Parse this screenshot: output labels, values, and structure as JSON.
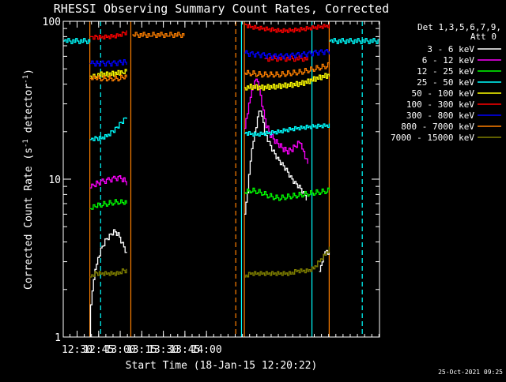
{
  "chart_data": {
    "type": "line",
    "title": "RHESSI Observing Summary Count Rates, Corrected",
    "xlabel": "Start Time (18-Jan-15 12:20:22)",
    "ylabel": "Corrected Count Rate (s⁻¹ detector⁻¹)",
    "ylabel_parts": [
      "Corrected Count Rate (s",
      "-1",
      " detector",
      "-1",
      ")"
    ],
    "yscale": "log",
    "ylim": [
      1,
      100
    ],
    "xlim_minutes_from_start": [
      0,
      220
    ],
    "x_ticks": [
      "12:30",
      "12:45",
      "13:00",
      "13:15",
      "13:30",
      "13:45",
      "14:00"
    ],
    "y_ticks": [
      "1",
      "10",
      "100"
    ],
    "legend_header": [
      "Det 1,3,5,6,7,9,",
      "Att 0"
    ],
    "legend_position": "right",
    "timestamp": "25-Oct-2021 09:25",
    "series": [
      {
        "name": "3 - 6 keV",
        "color": "#ffffff",
        "segments": [
          [
            [
              18.5,
              1.0
            ],
            [
              19,
              1.6
            ],
            [
              21,
              2.4
            ],
            [
              23,
              3.0
            ],
            [
              26,
              3.6
            ],
            [
              29,
              4.1
            ],
            [
              32,
              4.4
            ],
            [
              35,
              4.7
            ],
            [
              38,
              4.5
            ],
            [
              41,
              3.9
            ],
            [
              44,
              3.4
            ]
          ],
          [
            [
              126,
              6.0
            ],
            [
              128,
              8.5
            ],
            [
              130,
              13.5
            ],
            [
              132,
              18
            ],
            [
              134,
              22
            ],
            [
              136,
              28
            ],
            [
              138,
              26
            ],
            [
              140,
              20
            ],
            [
              143,
              17
            ],
            [
              146,
              15
            ],
            [
              149,
              13.5
            ],
            [
              152,
              12.5
            ],
            [
              155,
              11.5
            ],
            [
              158,
              10.3
            ],
            [
              161,
              9.5
            ],
            [
              164,
              9.0
            ],
            [
              167,
              8.2
            ],
            [
              169,
              7.6
            ]
          ],
          [
            [
              178,
              2.6
            ],
            [
              180,
              3.1
            ],
            [
              182,
              3.6
            ],
            [
              185,
              3.4
            ]
          ]
        ]
      },
      {
        "name": "6 - 12 keV",
        "color": "#ff00ff",
        "segments": [
          [
            [
              18.5,
              8.8
            ],
            [
              22,
              9.3
            ],
            [
              26,
              9.6
            ],
            [
              30,
              9.8
            ],
            [
              34,
              10.0
            ],
            [
              38,
              10.2
            ],
            [
              41,
              10.0
            ],
            [
              44,
              9.5
            ]
          ],
          [
            [
              126,
              21
            ],
            [
              128,
              26
            ],
            [
              130,
              33
            ],
            [
              132,
              38
            ],
            [
              134,
              43
            ],
            [
              136,
              37
            ],
            [
              138,
              29
            ],
            [
              141,
              22
            ],
            [
              144,
              19
            ],
            [
              147,
              17.5
            ],
            [
              150,
              16.5
            ],
            [
              153,
              15.5
            ],
            [
              156,
              15.0
            ],
            [
              159,
              15.5
            ],
            [
              162,
              16.5
            ],
            [
              164,
              17.0
            ],
            [
              166,
              15.5
            ],
            [
              168,
              13.5
            ],
            [
              170,
              12.5
            ]
          ]
        ]
      },
      {
        "name": "12 - 25 keV",
        "color": "#00ff00",
        "segments": [
          [
            [
              18.5,
              6.5
            ],
            [
              22,
              6.7
            ],
            [
              26,
              6.9
            ],
            [
              30,
              7.0
            ],
            [
              34,
              7.1
            ],
            [
              38,
              7.2
            ],
            [
              41,
              7.1
            ],
            [
              44,
              7.0
            ]
          ],
          [
            [
              126,
              8.2
            ],
            [
              130,
              8.5
            ],
            [
              134,
              8.4
            ],
            [
              138,
              8.2
            ],
            [
              142,
              7.9
            ],
            [
              146,
              7.7
            ],
            [
              150,
              7.6
            ],
            [
              154,
              7.7
            ],
            [
              158,
              7.8
            ],
            [
              162,
              7.9
            ],
            [
              166,
              8.0
            ],
            [
              170,
              8.1
            ],
            [
              174,
              8.2
            ],
            [
              178,
              8.3
            ],
            [
              182,
              8.4
            ],
            [
              185,
              8.5
            ]
          ]
        ]
      },
      {
        "name": "25 - 50 keV",
        "color": "#00ffff",
        "segments": [
          [
            [
              18.5,
              17.8
            ],
            [
              22,
              17.9
            ],
            [
              26,
              18.0
            ],
            [
              30,
              18.6
            ],
            [
              33,
              19.5
            ],
            [
              36,
              20.5
            ],
            [
              39,
              22
            ],
            [
              42,
              23.5
            ],
            [
              44,
              24.5
            ]
          ],
          [
            [
              126,
              19.5
            ],
            [
              130,
              19.2
            ],
            [
              134,
              19.0
            ],
            [
              138,
              19.2
            ],
            [
              142,
              19.4
            ],
            [
              146,
              19.6
            ],
            [
              150,
              19.8
            ],
            [
              154,
              20.2
            ],
            [
              158,
              20.5
            ],
            [
              162,
              20.8
            ],
            [
              166,
              21.0
            ],
            [
              170,
              21.2
            ],
            [
              174,
              21.4
            ],
            [
              178,
              21.5
            ],
            [
              182,
              21.6
            ],
            [
              185,
              21.7
            ]
          ],
          [
            [
              0,
              75
            ],
            [
              18.5,
              75
            ]
          ],
          [
            [
              185,
              75
            ],
            [
              220,
              75
            ]
          ]
        ]
      },
      {
        "name": "50 - 100 keV",
        "color": "#ffff00",
        "segments": [
          [
            [
              18.5,
              45
            ],
            [
              22,
              45.5
            ],
            [
              26,
              46
            ],
            [
              30,
              46
            ],
            [
              34,
              46.5
            ],
            [
              38,
              47
            ],
            [
              41,
              48
            ],
            [
              44,
              49
            ]
          ],
          [
            [
              126,
              38
            ],
            [
              130,
              38.5
            ],
            [
              134,
              38.2
            ],
            [
              138,
              38.0
            ],
            [
              142,
              38.3
            ],
            [
              146,
              38.5
            ],
            [
              150,
              38.8
            ],
            [
              154,
              39.2
            ],
            [
              158,
              39.5
            ],
            [
              162,
              40
            ],
            [
              166,
              40.5
            ],
            [
              170,
              41.5
            ],
            [
              174,
              43
            ],
            [
              178,
              44
            ],
            [
              182,
              45
            ],
            [
              185,
              45.5
            ]
          ]
        ]
      },
      {
        "name": "100 - 300 keV",
        "color": "#ff0000",
        "segments": [
          [
            [
              18.5,
              80
            ],
            [
              22,
              80
            ],
            [
              26,
              80
            ],
            [
              30,
              80.5
            ],
            [
              34,
              81
            ],
            [
              38,
              82
            ],
            [
              41,
              84
            ],
            [
              44,
              86
            ]
          ],
          [
            [
              126,
              96
            ],
            [
              130,
              93
            ],
            [
              134,
              92
            ],
            [
              138,
              91
            ],
            [
              142,
              90
            ],
            [
              146,
              89
            ],
            [
              150,
              88
            ],
            [
              154,
              88
            ],
            [
              158,
              88.5
            ],
            [
              162,
              89
            ],
            [
              166,
              90
            ],
            [
              170,
              91
            ],
            [
              174,
              92
            ],
            [
              178,
              93
            ],
            [
              182,
              94
            ],
            [
              185,
              95
            ]
          ],
          [
            [
              140,
              58
            ],
            [
              146,
              58
            ],
            [
              152,
              58
            ],
            [
              158,
              58
            ],
            [
              164,
              58
            ],
            [
              170,
              58
            ]
          ]
        ]
      },
      {
        "name": "300 - 800 keV",
        "color": "#0000ff",
        "segments": [
          [
            [
              18.5,
              54
            ],
            [
              22,
              54
            ],
            [
              26,
              54
            ],
            [
              30,
              54
            ],
            [
              34,
              54
            ],
            [
              38,
              54.5
            ],
            [
              41,
              55
            ],
            [
              44,
              55
            ]
          ],
          [
            [
              126,
              63
            ],
            [
              130,
              62
            ],
            [
              134,
              61.5
            ],
            [
              138,
              61
            ],
            [
              142,
              60.5
            ],
            [
              146,
              60
            ],
            [
              150,
              60
            ],
            [
              154,
              60
            ],
            [
              158,
              60.5
            ],
            [
              162,
              61
            ],
            [
              166,
              61.5
            ],
            [
              170,
              62
            ],
            [
              174,
              63
            ],
            [
              178,
              63.5
            ],
            [
              182,
              64
            ],
            [
              185,
              64
            ]
          ]
        ]
      },
      {
        "name": "800 - 7000 keV",
        "color": "#ff8000",
        "segments": [
          [
            [
              18.5,
              43.5
            ],
            [
              22,
              43.5
            ],
            [
              26,
              43.5
            ],
            [
              30,
              43.5
            ],
            [
              34,
              43.5
            ],
            [
              38,
              43.5
            ],
            [
              41,
              44
            ],
            [
              44,
              44
            ]
          ],
          [
            [
              126,
              47
            ],
            [
              130,
              47
            ],
            [
              134,
              46.5
            ],
            [
              138,
              46
            ],
            [
              142,
              46
            ],
            [
              146,
              46
            ],
            [
              150,
              46
            ],
            [
              154,
              46.5
            ],
            [
              158,
              47
            ],
            [
              162,
              47.5
            ],
            [
              166,
              48
            ],
            [
              170,
              49
            ],
            [
              174,
              50
            ],
            [
              178,
              51
            ],
            [
              182,
              52
            ],
            [
              185,
              53
            ]
          ],
          [
            [
              48,
              82
            ],
            [
              60,
              82
            ],
            [
              72,
              82
            ],
            [
              84,
              82
            ]
          ]
        ]
      },
      {
        "name": "7000 - 15000 keV",
        "color": "#808000",
        "segments": [
          [
            [
              18.5,
              2.4
            ],
            [
              22,
              2.5
            ],
            [
              26,
              2.5
            ],
            [
              30,
              2.5
            ],
            [
              34,
              2.5
            ],
            [
              38,
              2.5
            ],
            [
              41,
              2.6
            ],
            [
              44,
              2.6
            ]
          ],
          [
            [
              126,
              2.4
            ],
            [
              130,
              2.5
            ],
            [
              134,
              2.5
            ],
            [
              138,
              2.5
            ],
            [
              142,
              2.5
            ],
            [
              146,
              2.5
            ],
            [
              150,
              2.5
            ],
            [
              154,
              2.5
            ],
            [
              158,
              2.5
            ],
            [
              162,
              2.6
            ],
            [
              166,
              2.6
            ],
            [
              170,
              2.6
            ],
            [
              174,
              2.7
            ],
            [
              178,
              3.0
            ],
            [
              182,
              3.3
            ],
            [
              185,
              3.6
            ]
          ]
        ]
      }
    ],
    "vertical_markers": [
      {
        "x": 18.5,
        "color": "#ff8000",
        "style": "solid"
      },
      {
        "x": 26,
        "color": "#00ffff",
        "style": "dashed"
      },
      {
        "x": 47,
        "color": "#ff8000",
        "style": "solid"
      },
      {
        "x": 120,
        "color": "#ff8000",
        "style": "dashed"
      },
      {
        "x": 124,
        "color": "#00ffff",
        "style": "solid"
      },
      {
        "x": 126,
        "color": "#ff8000",
        "style": "solid"
      },
      {
        "x": 173,
        "color": "#00ffff",
        "style": "solid"
      },
      {
        "x": 185,
        "color": "#ff8000",
        "style": "solid"
      },
      {
        "x": 208,
        "color": "#00ffff",
        "style": "dashed"
      }
    ]
  }
}
